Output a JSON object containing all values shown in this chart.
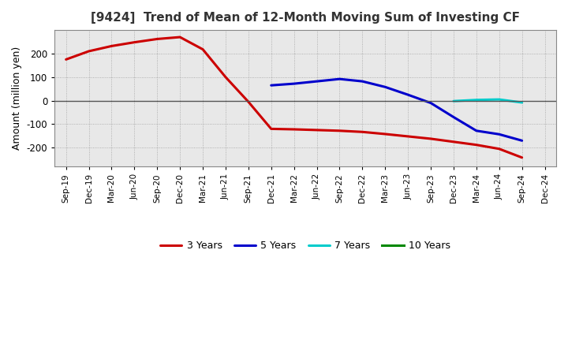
{
  "title": "[9424]  Trend of Mean of 12-Month Moving Sum of Investing CF",
  "ylabel": "Amount (million yen)",
  "plot_bg_color": "#e8e8e8",
  "fig_bg_color": "#ffffff",
  "grid_color": "#999999",
  "x_labels": [
    "Sep-19",
    "Dec-19",
    "Mar-20",
    "Jun-20",
    "Sep-20",
    "Dec-20",
    "Mar-21",
    "Jun-21",
    "Sep-21",
    "Dec-21",
    "Mar-22",
    "Jun-22",
    "Sep-22",
    "Dec-22",
    "Mar-23",
    "Jun-23",
    "Sep-23",
    "Dec-23",
    "Mar-24",
    "Jun-24",
    "Sep-24",
    "Dec-24"
  ],
  "series": {
    "3 Years": {
      "color": "#cc0000",
      "data": [
        175,
        210,
        232,
        248,
        262,
        270,
        218,
        100,
        -5,
        -120,
        -122,
        -125,
        -128,
        -133,
        -142,
        -152,
        -162,
        -175,
        -188,
        -205,
        -242,
        null
      ]
    },
    "5 Years": {
      "color": "#0000cc",
      "data": [
        null,
        null,
        null,
        null,
        null,
        null,
        null,
        null,
        null,
        65,
        72,
        82,
        92,
        82,
        58,
        25,
        -10,
        -70,
        -128,
        -143,
        -170,
        null
      ]
    },
    "7 Years": {
      "color": "#00cccc",
      "data": [
        null,
        null,
        null,
        null,
        null,
        null,
        null,
        null,
        null,
        null,
        null,
        null,
        null,
        null,
        null,
        null,
        null,
        -2,
        3,
        5,
        -8,
        null
      ]
    },
    "10 Years": {
      "color": "#008800",
      "data": [
        null,
        null,
        null,
        null,
        null,
        null,
        null,
        null,
        null,
        null,
        null,
        null,
        null,
        null,
        null,
        null,
        null,
        null,
        null,
        null,
        null,
        null
      ]
    }
  },
  "ylim": [
    -280,
    300
  ],
  "yticks": [
    -200,
    -100,
    0,
    100,
    200
  ],
  "legend_order": [
    "3 Years",
    "5 Years",
    "7 Years",
    "10 Years"
  ]
}
